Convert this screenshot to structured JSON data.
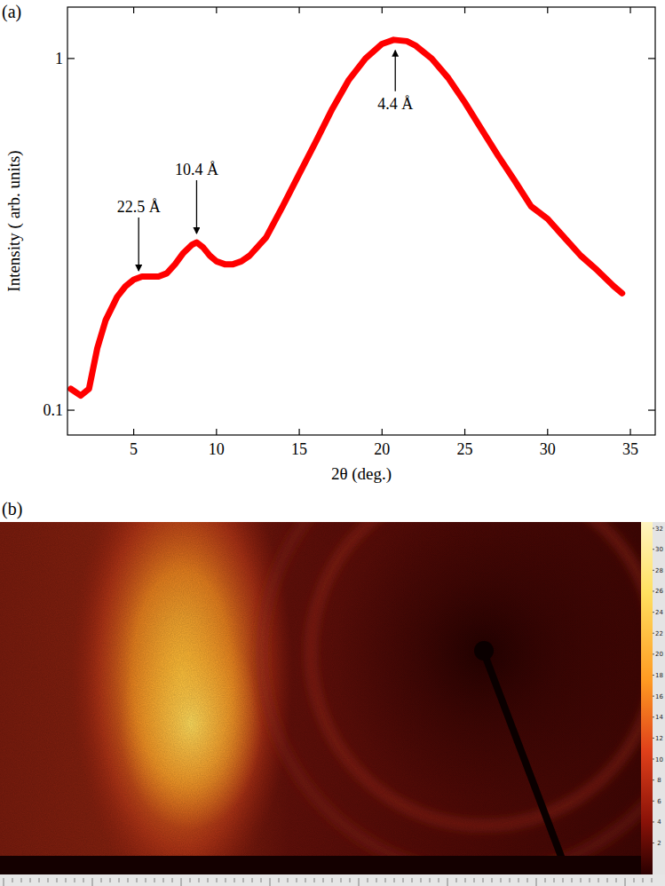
{
  "chart_data": [
    {
      "type": "line",
      "panel_label": "(a)",
      "x_label": "2θ (deg.)",
      "y_label": "Intensity ( arb. units)",
      "x": [
        1.2,
        1.8,
        2.3,
        2.8,
        3.3,
        4,
        4.5,
        5,
        5.5,
        6,
        6.5,
        7,
        7.5,
        8,
        8.5,
        8.8,
        9.2,
        9.6,
        10,
        10.5,
        11,
        11.5,
        12,
        13,
        14,
        15,
        16,
        17,
        18,
        19,
        20,
        20.7,
        21.5,
        22,
        23,
        24,
        25,
        26,
        27,
        28,
        29,
        30,
        31,
        32,
        33,
        34,
        34.5
      ],
      "values": [
        0.115,
        0.11,
        0.115,
        0.15,
        0.18,
        0.21,
        0.225,
        0.235,
        0.24,
        0.24,
        0.24,
        0.245,
        0.26,
        0.28,
        0.295,
        0.3,
        0.29,
        0.275,
        0.265,
        0.26,
        0.26,
        0.265,
        0.275,
        0.31,
        0.38,
        0.47,
        0.58,
        0.72,
        0.87,
        1.0,
        1.1,
        1.13,
        1.12,
        1.09,
        1.0,
        0.88,
        0.75,
        0.63,
        0.53,
        0.45,
        0.38,
        0.35,
        0.31,
        0.275,
        0.25,
        0.225,
        0.215
      ],
      "color": "#ff0000",
      "log": "y",
      "xlim": [
        1,
        36.5
      ],
      "ylim": [
        0.085,
        1.4
      ],
      "xticks": [
        5,
        10,
        15,
        20,
        25,
        30,
        35
      ],
      "yticks": [
        0.1,
        1
      ],
      "annotations": [
        {
          "text": "22.5 Å",
          "x": 5.3,
          "y": 0.235
        },
        {
          "text": "10.4 Å",
          "x": 8.8,
          "y": 0.3
        },
        {
          "text": "4.4 Å",
          "x": 20.8,
          "y": 1.13
        }
      ]
    },
    {
      "type": "image",
      "panel_label": "(b)",
      "colorbar": {
        "range": [
          -1,
          32.6
        ],
        "ticks": [
          2,
          4,
          6,
          8,
          10,
          12,
          14,
          16,
          18,
          20,
          22,
          24,
          26,
          28,
          30,
          32
        ]
      }
    }
  ]
}
